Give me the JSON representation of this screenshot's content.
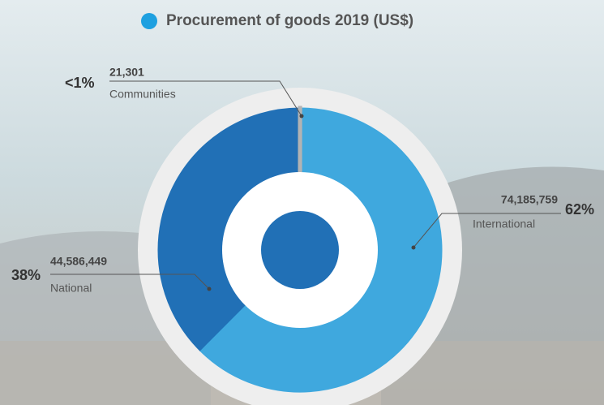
{
  "chart_data": {
    "type": "donut",
    "title": "Procurement of goods 2019 (US$)",
    "legend_color": "#1ea0e0",
    "categories": [
      "Communities",
      "International",
      "National"
    ],
    "values": [
      21301,
      74185759,
      44586449
    ],
    "value_labels": [
      "21,301",
      "74,185,759",
      "44,586,449"
    ],
    "percent_labels": [
      "<1%",
      "62%",
      "38%"
    ],
    "colors": [
      "#b3b3b3",
      "#3fa8de",
      "#2170b6"
    ]
  }
}
